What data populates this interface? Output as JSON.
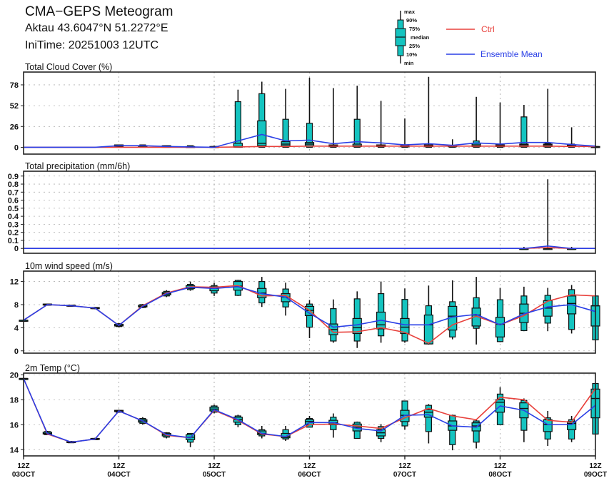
{
  "header": {
    "title": "CMA−GEPS Meteogram",
    "station": "Aktau 43.6047°N 51.2272°E",
    "initime": "IniTime: 20251003 12UTC"
  },
  "legend": {
    "box_labels": [
      "max",
      "90%",
      "75%",
      "median",
      "25%",
      "10%",
      "min"
    ],
    "ctrl": "Ctrl",
    "mean": "Ensemble Mean"
  },
  "colors": {
    "ctrl": "#e8413c",
    "mean": "#2a3fe6",
    "box": "#14c4c0",
    "grid": "#b0b0b0"
  },
  "x_axis": {
    "ticks": [
      {
        "hour": "12Z",
        "date": "03OCT"
      },
      {
        "hour": "12Z",
        "date": "04OCT"
      },
      {
        "hour": "12Z",
        "date": "05OCT"
      },
      {
        "hour": "12Z",
        "date": "06OCT"
      },
      {
        "hour": "12Z",
        "date": "07OCT"
      },
      {
        "hour": "12Z",
        "date": "08OCT"
      },
      {
        "hour": "12Z",
        "date": "09OCT"
      }
    ],
    "steps": 25,
    "step_hours": 6
  },
  "chart_data": [
    {
      "type": "boxplot-line",
      "title": "Total Cloud Cover (%)",
      "ylim": [
        -8.5,
        94
      ],
      "yticks": [
        0,
        26,
        52,
        78
      ],
      "ytick_labels": [
        "0",
        "26",
        "52",
        "78"
      ],
      "mean": [
        0,
        0,
        0,
        0,
        2,
        2,
        1,
        0.5,
        0,
        8,
        16,
        8,
        9,
        4.5,
        7,
        5.5,
        3,
        4.5,
        2.5,
        5.5,
        4,
        6,
        6,
        3.5,
        1.5
      ],
      "ctrl": [
        0,
        0,
        0,
        0,
        0,
        0,
        0,
        0,
        0,
        0.5,
        1,
        1,
        1.5,
        1.5,
        1.5,
        1.5,
        1.5,
        1.5,
        1.5,
        1.5,
        1.5,
        1.5,
        1.5,
        1,
        1
      ],
      "boxes": [
        null,
        null,
        null,
        null,
        [
          0,
          0,
          1,
          2,
          3,
          3,
          3
        ],
        [
          0,
          0,
          1,
          2,
          2,
          3,
          3
        ],
        [
          0,
          0,
          0,
          1,
          2,
          2,
          2
        ],
        [
          0,
          0,
          0,
          0,
          1,
          2,
          2
        ],
        [
          0,
          0,
          0,
          0,
          1,
          1,
          2
        ],
        [
          0,
          0,
          0,
          1,
          5,
          57,
          72
        ],
        [
          0,
          0,
          2,
          5,
          33,
          67,
          82
        ],
        [
          0,
          0,
          2,
          4,
          7,
          35,
          73
        ],
        [
          0,
          0,
          2,
          4,
          6,
          30,
          87
        ],
        [
          0,
          0,
          1,
          2,
          3,
          3,
          74
        ],
        [
          0,
          0,
          1,
          2,
          4,
          35,
          77
        ],
        [
          0,
          0,
          1,
          2,
          3,
          3,
          58
        ],
        [
          0,
          0,
          1,
          2,
          2,
          2,
          36
        ],
        [
          0,
          0,
          1,
          2,
          3,
          3,
          88
        ],
        [
          0,
          0,
          1,
          1,
          2,
          2,
          10
        ],
        [
          0,
          0,
          1,
          3,
          5,
          8,
          63
        ],
        [
          0,
          0,
          1,
          2,
          3,
          3,
          56
        ],
        [
          0,
          0,
          1,
          3,
          4,
          38,
          53
        ],
        [
          0,
          0,
          1,
          3,
          4,
          5,
          73
        ],
        [
          0,
          0,
          1,
          2,
          3,
          4,
          25
        ],
        [
          0,
          0,
          0,
          0,
          1,
          1,
          2
        ]
      ]
    },
    {
      "type": "boxplot-line",
      "title": "Total precipitation (mm/6h)",
      "ylim": [
        -0.06,
        0.96
      ],
      "yticks": [
        0,
        0.1,
        0.2,
        0.3,
        0.4,
        0.5,
        0.6,
        0.7,
        0.8,
        0.9
      ],
      "ytick_labels": [
        "0",
        "0.1",
        "0.2",
        "0.3",
        "0.4",
        "0.5",
        "0.6",
        "0.7",
        "0.8",
        "0.9"
      ],
      "mean": [
        0,
        0,
        0,
        0,
        0,
        0,
        0,
        0,
        0,
        0,
        0,
        0,
        0,
        0,
        0,
        0,
        0,
        0,
        0,
        0,
        0,
        0,
        0.03,
        0,
        0
      ],
      "ctrl": [
        0,
        0,
        0,
        0,
        0,
        0,
        0,
        0,
        0,
        0,
        0,
        0,
        0,
        0,
        0,
        0,
        0,
        0,
        0,
        0,
        0,
        0,
        0.01,
        0,
        0
      ],
      "boxes": [
        null,
        null,
        null,
        null,
        null,
        null,
        null,
        null,
        null,
        null,
        null,
        null,
        null,
        null,
        null,
        null,
        null,
        null,
        null,
        null,
        null,
        [
          0,
          0,
          0,
          0,
          0,
          0,
          0.02
        ],
        [
          0,
          0,
          0,
          0,
          0,
          0.01,
          0.86
        ],
        [
          0,
          0,
          0,
          0,
          0,
          0,
          0.02
        ],
        null
      ]
    },
    {
      "type": "boxplot-line",
      "title": "10m wind speed (m/s)",
      "ylim": [
        -0.4,
        13.8
      ],
      "yticks": [
        0,
        4,
        8,
        12
      ],
      "ytick_labels": [
        "0",
        "4",
        "8",
        "12"
      ],
      "mean": [
        5.3,
        8.0,
        7.8,
        7.4,
        4.4,
        7.7,
        9.9,
        11.0,
        10.8,
        11.1,
        9.9,
        9.3,
        6.5,
        4.1,
        4.5,
        5.3,
        4.5,
        4.5,
        5.85,
        6.3,
        4.5,
        6.4,
        7.6,
        8.0,
        6.8
      ],
      "ctrl": [
        5.3,
        8.0,
        7.8,
        7.4,
        4.4,
        7.8,
        10.0,
        11.1,
        11.0,
        11.3,
        9.5,
        9.6,
        7.0,
        3.2,
        3.3,
        4.0,
        3.2,
        1.3,
        4.5,
        6.0,
        4.5,
        6.1,
        8.6,
        9.7,
        9.5
      ],
      "boxes": [
        [
          5.3,
          5.3,
          5.3,
          5.3,
          5.3,
          5.3,
          5.3
        ],
        [
          7.9,
          7.9,
          8.0,
          8.0,
          8.1,
          8.1,
          8.1
        ],
        [
          7.7,
          7.7,
          7.8,
          7.8,
          7.9,
          7.9,
          7.9
        ],
        [
          7.2,
          7.3,
          7.3,
          7.4,
          7.5,
          7.5,
          7.6
        ],
        [
          4.1,
          4.2,
          4.3,
          4.4,
          4.6,
          4.7,
          4.8
        ],
        [
          7.4,
          7.5,
          7.6,
          7.7,
          7.9,
          8.0,
          8.1
        ],
        [
          9.3,
          9.5,
          9.7,
          9.9,
          10.1,
          10.3,
          10.5
        ],
        [
          10.4,
          10.6,
          10.8,
          11.0,
          11.3,
          11.5,
          12.0
        ],
        [
          9.5,
          10.0,
          10.4,
          10.8,
          11.1,
          11.3,
          11.8
        ],
        [
          9.5,
          9.6,
          10.5,
          11.2,
          12.0,
          12.2,
          12.3
        ],
        [
          7.6,
          8.3,
          9.2,
          10.0,
          10.8,
          12.0,
          12.8
        ],
        [
          6.1,
          7.6,
          8.5,
          9.3,
          9.9,
          10.7,
          11.8
        ],
        [
          2.2,
          4.1,
          6.1,
          7.0,
          7.7,
          8.1,
          8.8
        ],
        [
          1.4,
          1.7,
          2.8,
          3.7,
          4.65,
          7.3,
          8.9
        ],
        [
          0.5,
          1.7,
          3.0,
          4.0,
          5.6,
          9.0,
          10.3
        ],
        [
          1.4,
          2.6,
          3.8,
          4.5,
          6.7,
          9.9,
          12.0
        ],
        [
          1.4,
          1.7,
          3.0,
          4.1,
          5.6,
          8.9,
          10.8
        ],
        [
          1.1,
          1.2,
          1.2,
          4.5,
          6.2,
          7.8,
          11.3
        ],
        [
          2.0,
          2.4,
          3.6,
          6.0,
          7.7,
          8.5,
          12.2
        ],
        [
          1.1,
          3.9,
          4.3,
          6.2,
          7.4,
          9.2,
          12.8
        ],
        [
          1.5,
          1.6,
          2.4,
          4.6,
          5.8,
          8.85,
          10.9
        ],
        [
          3.4,
          3.5,
          4.9,
          6.5,
          8.1,
          9.5,
          11.1
        ],
        [
          3.4,
          4.8,
          6.0,
          7.4,
          8.7,
          9.6,
          10.9
        ],
        [
          3.0,
          3.7,
          6.4,
          8.2,
          9.5,
          10.6,
          11.4
        ],
        [
          1.9,
          1.9,
          4.3,
          7.8,
          7.8,
          9.5,
          9.5
        ]
      ]
    },
    {
      "type": "boxplot-line",
      "title": "2m Temp (°C)",
      "ylim": [
        13.5,
        20.13
      ],
      "yticks": [
        14,
        16,
        18,
        20
      ],
      "ytick_labels": [
        "14",
        "16",
        "18",
        "20"
      ],
      "mean": [
        19.7,
        15.3,
        14.6,
        14.85,
        17.1,
        16.3,
        15.2,
        14.95,
        17.2,
        16.4,
        15.3,
        15.05,
        16.17,
        16.17,
        15.7,
        15.5,
        16.75,
        16.8,
        15.9,
        15.8,
        17.5,
        17.15,
        16.0,
        16.0,
        17.55
      ],
      "ctrl": [
        19.7,
        15.25,
        14.6,
        14.85,
        17.1,
        16.3,
        15.15,
        14.95,
        17.15,
        16.35,
        15.25,
        15.05,
        16.0,
        16.05,
        15.9,
        15.7,
        16.55,
        17.3,
        16.7,
        16.4,
        18.2,
        18.0,
        16.35,
        16.2,
        18.9
      ],
      "boxes": [
        [
          19.7,
          19.7,
          19.7,
          19.7,
          19.7,
          19.7,
          19.7
        ],
        [
          15.2,
          15.2,
          15.25,
          15.3,
          15.4,
          15.45,
          15.5
        ],
        [
          14.55,
          14.55,
          14.6,
          14.6,
          14.65,
          14.65,
          14.7
        ],
        [
          14.8,
          14.8,
          14.82,
          14.85,
          14.9,
          14.9,
          14.95
        ],
        [
          17.0,
          17.0,
          17.05,
          17.1,
          17.15,
          17.15,
          17.2
        ],
        [
          16.0,
          16.1,
          16.2,
          16.3,
          16.4,
          16.5,
          16.6
        ],
        [
          14.9,
          15.0,
          15.1,
          15.2,
          15.3,
          15.35,
          15.4
        ],
        [
          14.2,
          14.6,
          14.8,
          15.0,
          15.2,
          15.3,
          15.3
        ],
        [
          16.9,
          17.0,
          17.1,
          17.25,
          17.4,
          17.5,
          17.6
        ],
        [
          15.8,
          16.0,
          16.2,
          16.4,
          16.6,
          16.7,
          16.8
        ],
        [
          14.9,
          15.1,
          15.2,
          15.3,
          15.5,
          15.6,
          15.9
        ],
        [
          14.7,
          14.85,
          14.95,
          15.05,
          15.3,
          15.6,
          15.9
        ],
        [
          15.8,
          15.8,
          16.0,
          16.25,
          16.4,
          16.5,
          16.7
        ],
        [
          14.96,
          15.6,
          16.0,
          16.15,
          16.35,
          16.6,
          16.9
        ],
        [
          14.9,
          14.9,
          15.5,
          15.8,
          16.05,
          16.2,
          16.25
        ],
        [
          14.6,
          14.9,
          15.1,
          15.35,
          15.6,
          15.85,
          16.05
        ],
        [
          15.6,
          15.9,
          16.25,
          16.75,
          17.15,
          17.9,
          17.9
        ],
        [
          14.5,
          15.45,
          16.6,
          17.0,
          17.2,
          17.55,
          17.65
        ],
        [
          13.95,
          14.4,
          15.55,
          15.9,
          16.3,
          16.75,
          16.8
        ],
        [
          14.1,
          14.6,
          15.5,
          15.9,
          16.15,
          16.3,
          16.45
        ],
        [
          16.0,
          16.0,
          17.0,
          17.8,
          18.0,
          18.45,
          19.0
        ],
        [
          14.6,
          15.55,
          16.55,
          17.3,
          17.75,
          17.95,
          18.1
        ],
        [
          14.3,
          14.85,
          15.45,
          16.0,
          16.4,
          16.55,
          17.1
        ],
        [
          14.6,
          14.85,
          15.6,
          16.1,
          16.25,
          16.4,
          16.7
        ],
        [
          15.25,
          15.25,
          16.55,
          18.1,
          18.85,
          19.3,
          19.3
        ]
      ]
    }
  ]
}
